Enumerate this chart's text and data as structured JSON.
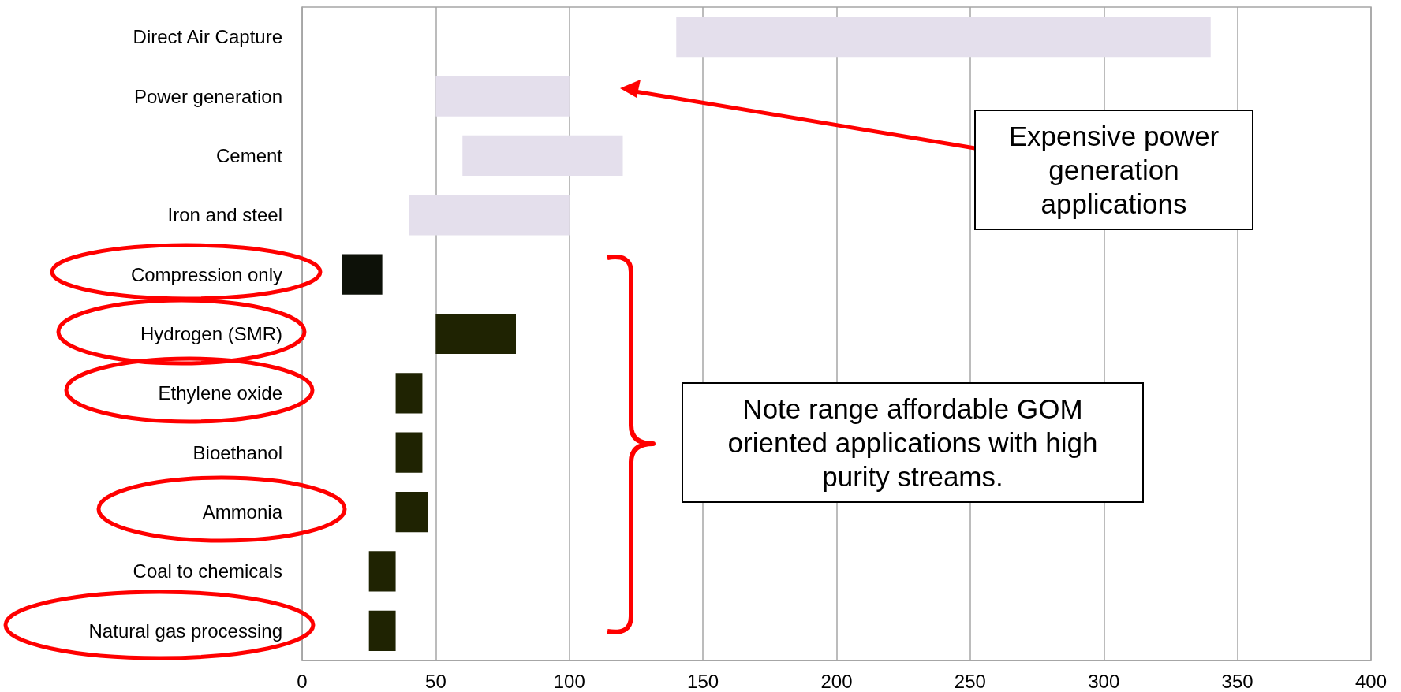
{
  "chart_data": {
    "type": "bar",
    "orientation": "horizontal",
    "categories": [
      "Direct Air Capture",
      "Power generation",
      "Cement",
      "Iron and steel",
      "Compression only",
      "Hydrogen (SMR)",
      "Ethylene oxide",
      "Bioethanol",
      "Ammonia",
      "Coal to chemicals",
      "Natural gas processing"
    ],
    "base": [
      140,
      50,
      60,
      40,
      15,
      50,
      35,
      35,
      35,
      25,
      25
    ],
    "values": [
      200,
      50,
      60,
      60,
      15,
      30,
      10,
      10,
      12,
      10,
      10
    ],
    "colors": [
      "#e4dfec",
      "#e4dfec",
      "#e4dfec",
      "#e4dfec",
      "#0d1108",
      "#1f2302",
      "#1f2302",
      "#1f2302",
      "#1f2302",
      "#1f2302",
      "#1f2302"
    ],
    "xlim": [
      0,
      400
    ],
    "xticks": [
      0,
      50,
      100,
      150,
      200,
      250,
      300,
      350,
      400
    ],
    "grid": "x",
    "annotations": [
      "Expensive power generation applications",
      "Note range affordable GOM oriented applications with high purity streams."
    ]
  }
}
